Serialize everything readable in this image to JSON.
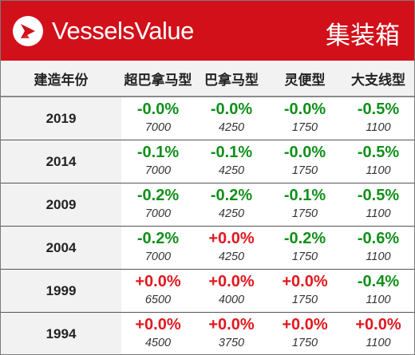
{
  "header": {
    "brand": "VesselsValue",
    "title": "集装箱",
    "logo_icon": "vesselsvalue-logo-icon",
    "background_color": "#d2101a"
  },
  "table": {
    "columns": [
      "建造年份",
      "超巴拿马型",
      "巴拿马型",
      "灵便型",
      "大支线型"
    ],
    "rows": [
      {
        "year": "2019",
        "cells": [
          {
            "pct": "-0.0%",
            "count": "7000",
            "trend": "neg"
          },
          {
            "pct": "-0.0%",
            "count": "4250",
            "trend": "neg"
          },
          {
            "pct": "-0.0%",
            "count": "1750",
            "trend": "neg"
          },
          {
            "pct": "-0.5%",
            "count": "1100",
            "trend": "neg"
          }
        ]
      },
      {
        "year": "2014",
        "cells": [
          {
            "pct": "-0.1%",
            "count": "7000",
            "trend": "neg"
          },
          {
            "pct": "-0.1%",
            "count": "4250",
            "trend": "neg"
          },
          {
            "pct": "-0.0%",
            "count": "1750",
            "trend": "neg"
          },
          {
            "pct": "-0.5%",
            "count": "1100",
            "trend": "neg"
          }
        ]
      },
      {
        "year": "2009",
        "cells": [
          {
            "pct": "-0.2%",
            "count": "7000",
            "trend": "neg"
          },
          {
            "pct": "-0.2%",
            "count": "4250",
            "trend": "neg"
          },
          {
            "pct": "-0.1%",
            "count": "1750",
            "trend": "neg"
          },
          {
            "pct": "-0.5%",
            "count": "1100",
            "trend": "neg"
          }
        ]
      },
      {
        "year": "2004",
        "cells": [
          {
            "pct": "-0.2%",
            "count": "7000",
            "trend": "neg"
          },
          {
            "pct": "+0.0%",
            "count": "4250",
            "trend": "pos"
          },
          {
            "pct": "-0.2%",
            "count": "1750",
            "trend": "neg"
          },
          {
            "pct": "-0.6%",
            "count": "1100",
            "trend": "neg"
          }
        ]
      },
      {
        "year": "1999",
        "cells": [
          {
            "pct": "+0.0%",
            "count": "6500",
            "trend": "pos"
          },
          {
            "pct": "+0.0%",
            "count": "4000",
            "trend": "pos"
          },
          {
            "pct": "+0.0%",
            "count": "1750",
            "trend": "pos"
          },
          {
            "pct": "-0.4%",
            "count": "1100",
            "trend": "neg"
          }
        ]
      },
      {
        "year": "1994",
        "cells": [
          {
            "pct": "+0.0%",
            "count": "4500",
            "trend": "pos"
          },
          {
            "pct": "+0.0%",
            "count": "3750",
            "trend": "pos"
          },
          {
            "pct": "+0.0%",
            "count": "1750",
            "trend": "pos"
          },
          {
            "pct": "+0.0%",
            "count": "1100",
            "trend": "pos"
          }
        ]
      }
    ],
    "colors": {
      "negative": "#11901a",
      "positive": "#e0181f"
    }
  }
}
